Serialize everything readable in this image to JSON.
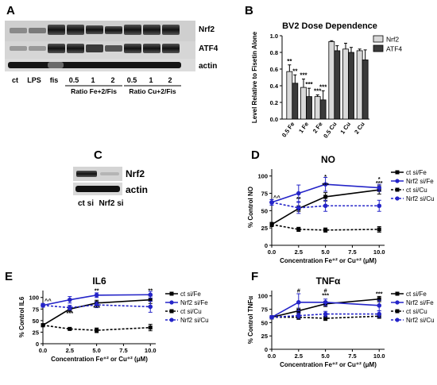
{
  "panels": {
    "A": {
      "letter": "A",
      "band_labels": [
        "Nrf2",
        "ATF4",
        "actin"
      ],
      "lanes": [
        "ct",
        "LPS",
        "fis",
        "0.5",
        "1",
        "2",
        "0.5",
        "1",
        "2"
      ],
      "groups": [
        "Ratio Fe+2/Fis",
        "Ratio Cu+2/Fis"
      ]
    },
    "C": {
      "letter": "C",
      "band_labels": [
        "Nrf2",
        "actin"
      ],
      "lanes": [
        "ct si",
        "Nrf2 si"
      ]
    }
  },
  "colors": {
    "black": "#000000",
    "blue": "#2424c8",
    "bar_light": "#d9d9d9",
    "bar_dark": "#3a3a3a"
  },
  "chart_data": [
    {
      "panel": "B",
      "type": "bar",
      "title": "BV2 Dose Dependence",
      "ylabel": "Level Relative to Fisetin Alone",
      "xlabel": "",
      "categories": [
        "0.5 Fe",
        "1 Fe",
        "2 Fe",
        "0.5 Cu",
        "1 Cu",
        "2 Cu"
      ],
      "ylim": [
        0,
        1.0
      ],
      "yticks": [
        "0.0",
        "0.2",
        "0.4",
        "0.6",
        "0.8",
        "1.0"
      ],
      "legend": "right",
      "series": [
        {
          "name": "Nrf2",
          "values": [
            0.57,
            0.38,
            0.27,
            0.93,
            0.84,
            0.82
          ],
          "errors": [
            0.08,
            0.1,
            0.02,
            0.01,
            0.07,
            0.02
          ],
          "stars": [
            "**",
            "***",
            "***",
            "",
            "",
            ""
          ]
        },
        {
          "name": "ATF4",
          "values": [
            0.43,
            0.27,
            0.23,
            0.82,
            0.8,
            0.71
          ],
          "errors": [
            0.1,
            0.1,
            0.11,
            0.06,
            0.06,
            0.12
          ],
          "stars": [
            "**",
            "***",
            "***",
            "",
            "",
            ""
          ]
        }
      ]
    },
    {
      "panel": "D",
      "type": "line",
      "title": "NO",
      "ylabel": "% Control NO",
      "xlabel": "Concentration Fe⁺² or Cu⁺² (μM)",
      "x": [
        0,
        2.5,
        5,
        10
      ],
      "xticks": [
        "0.0",
        "2.5",
        "5.0",
        "7.5",
        "10.0"
      ],
      "yticks": [
        "0",
        "25",
        "50",
        "75",
        "100"
      ],
      "xlim": [
        0,
        10.5
      ],
      "ylim": [
        0,
        110
      ],
      "legend": "right",
      "series": [
        {
          "name": "ct si/Fe",
          "color": "#000000",
          "dashed": false,
          "values": [
            30,
            53,
            70,
            80
          ],
          "errors": [
            3,
            4,
            6,
            6
          ]
        },
        {
          "name": "Nrf2 si/Fe",
          "color": "#2424c8",
          "dashed": false,
          "values": [
            62,
            75,
            88,
            83
          ],
          "errors": [
            4,
            12,
            10,
            5
          ]
        },
        {
          "name": "ct si/Cu",
          "color": "#000000",
          "dashed": true,
          "values": [
            30,
            23,
            22,
            23
          ],
          "errors": [
            3,
            3,
            3,
            4
          ]
        },
        {
          "name": "Nrf2 si/Cu",
          "color": "#2424c8",
          "dashed": true,
          "values": [
            62,
            54,
            57,
            57
          ],
          "errors": [
            4,
            8,
            8,
            8
          ]
        }
      ],
      "annotations": [
        {
          "x": 0,
          "y": 66,
          "text": "^^"
        },
        {
          "x": 2.5,
          "y": 64,
          "text": "**"
        },
        {
          "x": 5,
          "y": 96,
          "text": "*"
        },
        {
          "x": 5,
          "y": 84,
          "text": "***"
        },
        {
          "x": 10,
          "y": 93,
          "text": "*"
        },
        {
          "x": 10,
          "y": 87,
          "text": "***"
        }
      ]
    },
    {
      "panel": "E",
      "type": "line",
      "title": "IL6",
      "ylabel": "% Control IL6",
      "xlabel": "Concentration Fe⁺² or Cu⁺² (μM)",
      "x": [
        0,
        2.5,
        5,
        10
      ],
      "xticks": [
        "0.0",
        "2.5",
        "5.0",
        "7.5",
        "10.0"
      ],
      "yticks": [
        "0",
        "25",
        "50",
        "75",
        "100"
      ],
      "xlim": [
        0,
        10.5
      ],
      "ylim": [
        0,
        115
      ],
      "legend": "right",
      "series": [
        {
          "name": "ct si/Fe",
          "color": "#000000",
          "dashed": false,
          "values": [
            40,
            75,
            88,
            95
          ],
          "errors": [
            3,
            5,
            6,
            8
          ]
        },
        {
          "name": "Nrf2 si/Fe",
          "color": "#2424c8",
          "dashed": false,
          "values": [
            83,
            95,
            105,
            106
          ],
          "errors": [
            4,
            7,
            5,
            7
          ]
        },
        {
          "name": "ct si/Cu",
          "color": "#000000",
          "dashed": true,
          "values": [
            40,
            32,
            29,
            35
          ],
          "errors": [
            3,
            2,
            5,
            7
          ]
        },
        {
          "name": "Nrf2 si/Cu",
          "color": "#2424c8",
          "dashed": true,
          "values": [
            83,
            78,
            84,
            80
          ],
          "errors": [
            4,
            5,
            6,
            12
          ]
        }
      ],
      "annotations": [
        {
          "x": 0,
          "y": 88,
          "text": "^^"
        },
        {
          "x": 2.5,
          "y": 62,
          "text": "***"
        },
        {
          "x": 5,
          "y": 111,
          "text": "**"
        },
        {
          "x": 5,
          "y": 74,
          "text": "***"
        },
        {
          "x": 10,
          "y": 111,
          "text": "**"
        }
      ]
    },
    {
      "panel": "F",
      "type": "line",
      "title": "TNFα",
      "ylabel": "% Control TNFα",
      "xlabel": "Concentration Fe⁺² or Cu⁺² (μM)",
      "x": [
        0,
        2.5,
        5,
        10
      ],
      "xticks": [
        "0.0",
        "2.5",
        "5.0",
        "7.5",
        "10.0"
      ],
      "yticks": [
        "0",
        "25",
        "50",
        "75",
        "100"
      ],
      "xlim": [
        0,
        10.5
      ],
      "ylim": [
        0,
        110
      ],
      "legend": "right",
      "series": [
        {
          "name": "ct si/Fe",
          "color": "#000000",
          "dashed": false,
          "values": [
            60,
            72,
            85,
            94
          ],
          "errors": [
            3,
            5,
            5,
            5
          ]
        },
        {
          "name": "Nrf2 si/Fe",
          "color": "#2424c8",
          "dashed": false,
          "values": [
            60,
            88,
            88,
            82
          ],
          "errors": [
            3,
            16,
            6,
            10
          ]
        },
        {
          "name": "ct si/Cu",
          "color": "#000000",
          "dashed": true,
          "values": [
            60,
            60,
            58,
            62
          ],
          "errors": [
            3,
            4,
            4,
            4
          ]
        },
        {
          "name": "Nrf2 si/Cu",
          "color": "#2424c8",
          "dashed": true,
          "values": [
            60,
            63,
            66,
            66
          ],
          "errors": [
            3,
            5,
            5,
            6
          ]
        }
      ],
      "annotations": [
        {
          "x": 2.5,
          "y": 106,
          "text": "#"
        },
        {
          "x": 5,
          "y": 106,
          "text": "#"
        },
        {
          "x": 5,
          "y": 97,
          "text": "***"
        },
        {
          "x": 10,
          "y": 100,
          "text": "***"
        }
      ]
    }
  ]
}
